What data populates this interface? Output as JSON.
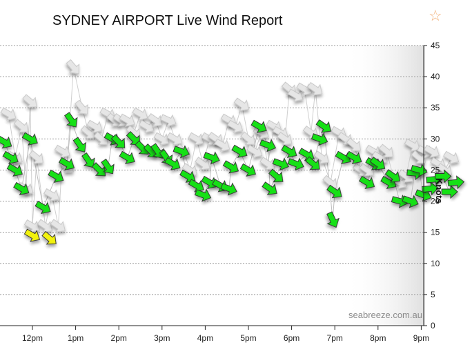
{
  "header": {
    "title": "SYDNEY AIRPORT Live Wind Report",
    "favorite_icon": "star-outline-icon"
  },
  "watermark": "seabreeze.com.au",
  "colors": {
    "strong": "#19e019",
    "moderate": "#f2f20f",
    "gust": "#e6e6e6",
    "grid": "#9a9a9a"
  },
  "chart_data": {
    "type": "scatter",
    "title": "SYDNEY AIRPORT Live Wind Report",
    "xlabel": "",
    "ylabel": "Knots",
    "ylim": [
      0,
      45
    ],
    "yticks": [
      0,
      5,
      10,
      15,
      20,
      25,
      30,
      35,
      40,
      45
    ],
    "xticks": [
      "12pm",
      "1pm",
      "2pm",
      "3pm",
      "4pm",
      "5pm",
      "6pm",
      "7pm",
      "8pm",
      "9pm"
    ],
    "grid": true,
    "note": "x values are hours after midnight",
    "series": [
      {
        "name": "",
        "color": "#19e019",
        "points": [
          [
            11.35,
            29.5,
            200
          ],
          [
            11.5,
            27,
            200
          ],
          [
            11.6,
            25,
            200
          ],
          [
            11.75,
            22,
            200
          ],
          [
            11.95,
            30,
            200
          ],
          [
            12.25,
            19,
            200
          ],
          [
            12.55,
            24,
            200
          ],
          [
            12.8,
            26,
            200
          ],
          [
            12.9,
            33,
            225
          ],
          [
            13.1,
            29,
            225
          ],
          [
            13.3,
            26.5,
            225
          ],
          [
            13.55,
            25,
            215
          ],
          [
            13.75,
            25.5,
            225
          ],
          [
            13.85,
            30,
            200
          ],
          [
            14.0,
            29.5,
            215
          ],
          [
            14.2,
            27,
            200
          ],
          [
            14.35,
            30,
            215
          ],
          [
            14.55,
            28.5,
            215
          ],
          [
            14.75,
            28,
            215
          ],
          [
            14.9,
            28,
            225
          ],
          [
            15.1,
            27,
            225
          ],
          [
            15.25,
            26,
            200
          ],
          [
            15.45,
            28,
            190
          ],
          [
            15.6,
            24,
            200
          ],
          [
            15.8,
            22.5,
            200
          ],
          [
            15.95,
            21,
            190
          ],
          [
            16.1,
            23,
            200
          ],
          [
            16.15,
            27,
            190
          ],
          [
            16.35,
            22.5,
            200
          ],
          [
            16.55,
            22,
            190
          ],
          [
            16.6,
            25.5,
            200
          ],
          [
            16.8,
            28,
            200
          ],
          [
            17.0,
            25,
            200
          ],
          [
            17.25,
            32,
            200
          ],
          [
            17.45,
            29,
            190
          ],
          [
            17.5,
            22,
            205
          ],
          [
            17.65,
            24,
            210
          ],
          [
            17.75,
            26,
            190
          ],
          [
            17.95,
            28,
            200
          ],
          [
            18.1,
            26,
            190
          ],
          [
            18.35,
            27.5,
            200
          ],
          [
            18.5,
            26,
            210
          ],
          [
            18.65,
            30,
            190
          ],
          [
            18.75,
            32,
            205
          ],
          [
            18.95,
            17,
            235
          ],
          [
            19.0,
            21.5,
            205
          ],
          [
            19.2,
            27,
            200
          ],
          [
            19.45,
            27,
            200
          ],
          [
            19.75,
            23,
            200
          ],
          [
            19.9,
            26,
            200
          ],
          [
            20.0,
            26,
            205
          ],
          [
            20.25,
            23,
            200
          ],
          [
            20.35,
            24,
            205
          ],
          [
            20.5,
            20,
            185
          ],
          [
            20.75,
            20,
            190
          ],
          [
            20.85,
            24.5,
            175
          ],
          [
            20.95,
            25,
            185
          ],
          [
            21.05,
            21,
            190
          ],
          [
            21.2,
            22,
            165
          ],
          [
            21.3,
            23.5,
            165
          ],
          [
            21.5,
            24,
            170
          ],
          [
            21.65,
            21.5,
            170
          ],
          [
            21.8,
            23,
            165
          ]
        ]
      },
      {
        "name": "",
        "color": "#f2f20f",
        "points": [
          [
            12.0,
            14.5,
            200
          ],
          [
            12.4,
            14,
            210
          ]
        ]
      },
      {
        "name": "",
        "color": "#e6e6e6",
        "points": [
          [
            11.45,
            34,
            200
          ],
          [
            11.6,
            27,
            200
          ],
          [
            11.75,
            32,
            210
          ],
          [
            11.85,
            22,
            200
          ],
          [
            11.95,
            36,
            210
          ],
          [
            12.0,
            16,
            200
          ],
          [
            12.1,
            27,
            210
          ],
          [
            12.3,
            16,
            205
          ],
          [
            12.45,
            21,
            200
          ],
          [
            12.6,
            16,
            205
          ],
          [
            12.7,
            28,
            200
          ],
          [
            12.8,
            25.5,
            210
          ],
          [
            12.95,
            41.5,
            220
          ],
          [
            13.15,
            35,
            220
          ],
          [
            13.3,
            31,
            210
          ],
          [
            13.45,
            32,
            200
          ],
          [
            13.6,
            30,
            210
          ],
          [
            13.75,
            34,
            200
          ],
          [
            13.9,
            33,
            210
          ],
          [
            14.05,
            33,
            205
          ],
          [
            14.2,
            33,
            200
          ],
          [
            14.35,
            31,
            210
          ],
          [
            14.5,
            34,
            200
          ],
          [
            14.65,
            32,
            200
          ],
          [
            14.85,
            33,
            205
          ],
          [
            15.0,
            30,
            200
          ],
          [
            15.15,
            33,
            195
          ],
          [
            15.3,
            30,
            200
          ],
          [
            15.5,
            28,
            210
          ],
          [
            15.65,
            25,
            205
          ],
          [
            15.8,
            30,
            200
          ],
          [
            15.95,
            26,
            205
          ],
          [
            16.1,
            30,
            200
          ],
          [
            16.25,
            30,
            205
          ],
          [
            16.4,
            29,
            200
          ],
          [
            16.55,
            33,
            200
          ],
          [
            16.7,
            32,
            200
          ],
          [
            16.85,
            35.5,
            205
          ],
          [
            17.0,
            30,
            210
          ],
          [
            17.15,
            28,
            200
          ],
          [
            17.3,
            31,
            200
          ],
          [
            17.45,
            26,
            205
          ],
          [
            17.6,
            32,
            200
          ],
          [
            17.75,
            31,
            200
          ],
          [
            17.85,
            30,
            205
          ],
          [
            17.95,
            38,
            210
          ],
          [
            18.1,
            37,
            200
          ],
          [
            18.3,
            38,
            200
          ],
          [
            18.45,
            31,
            205
          ],
          [
            18.55,
            38,
            205
          ],
          [
            18.7,
            27,
            205
          ],
          [
            18.9,
            23,
            210
          ],
          [
            19.1,
            31,
            200
          ],
          [
            19.25,
            30,
            205
          ],
          [
            19.45,
            29,
            210
          ],
          [
            19.6,
            25,
            205
          ],
          [
            19.75,
            25,
            205
          ],
          [
            19.9,
            28,
            200
          ],
          [
            20.05,
            27,
            200
          ],
          [
            20.2,
            28,
            210
          ],
          [
            20.35,
            24,
            205
          ],
          [
            20.5,
            23,
            200
          ],
          [
            20.65,
            24,
            205
          ],
          [
            20.8,
            29,
            200
          ],
          [
            20.95,
            27,
            210
          ],
          [
            21.1,
            28,
            195
          ],
          [
            21.25,
            28,
            200
          ],
          [
            21.4,
            26,
            200
          ],
          [
            21.55,
            25,
            205
          ],
          [
            21.7,
            27,
            200
          ]
        ]
      }
    ]
  }
}
